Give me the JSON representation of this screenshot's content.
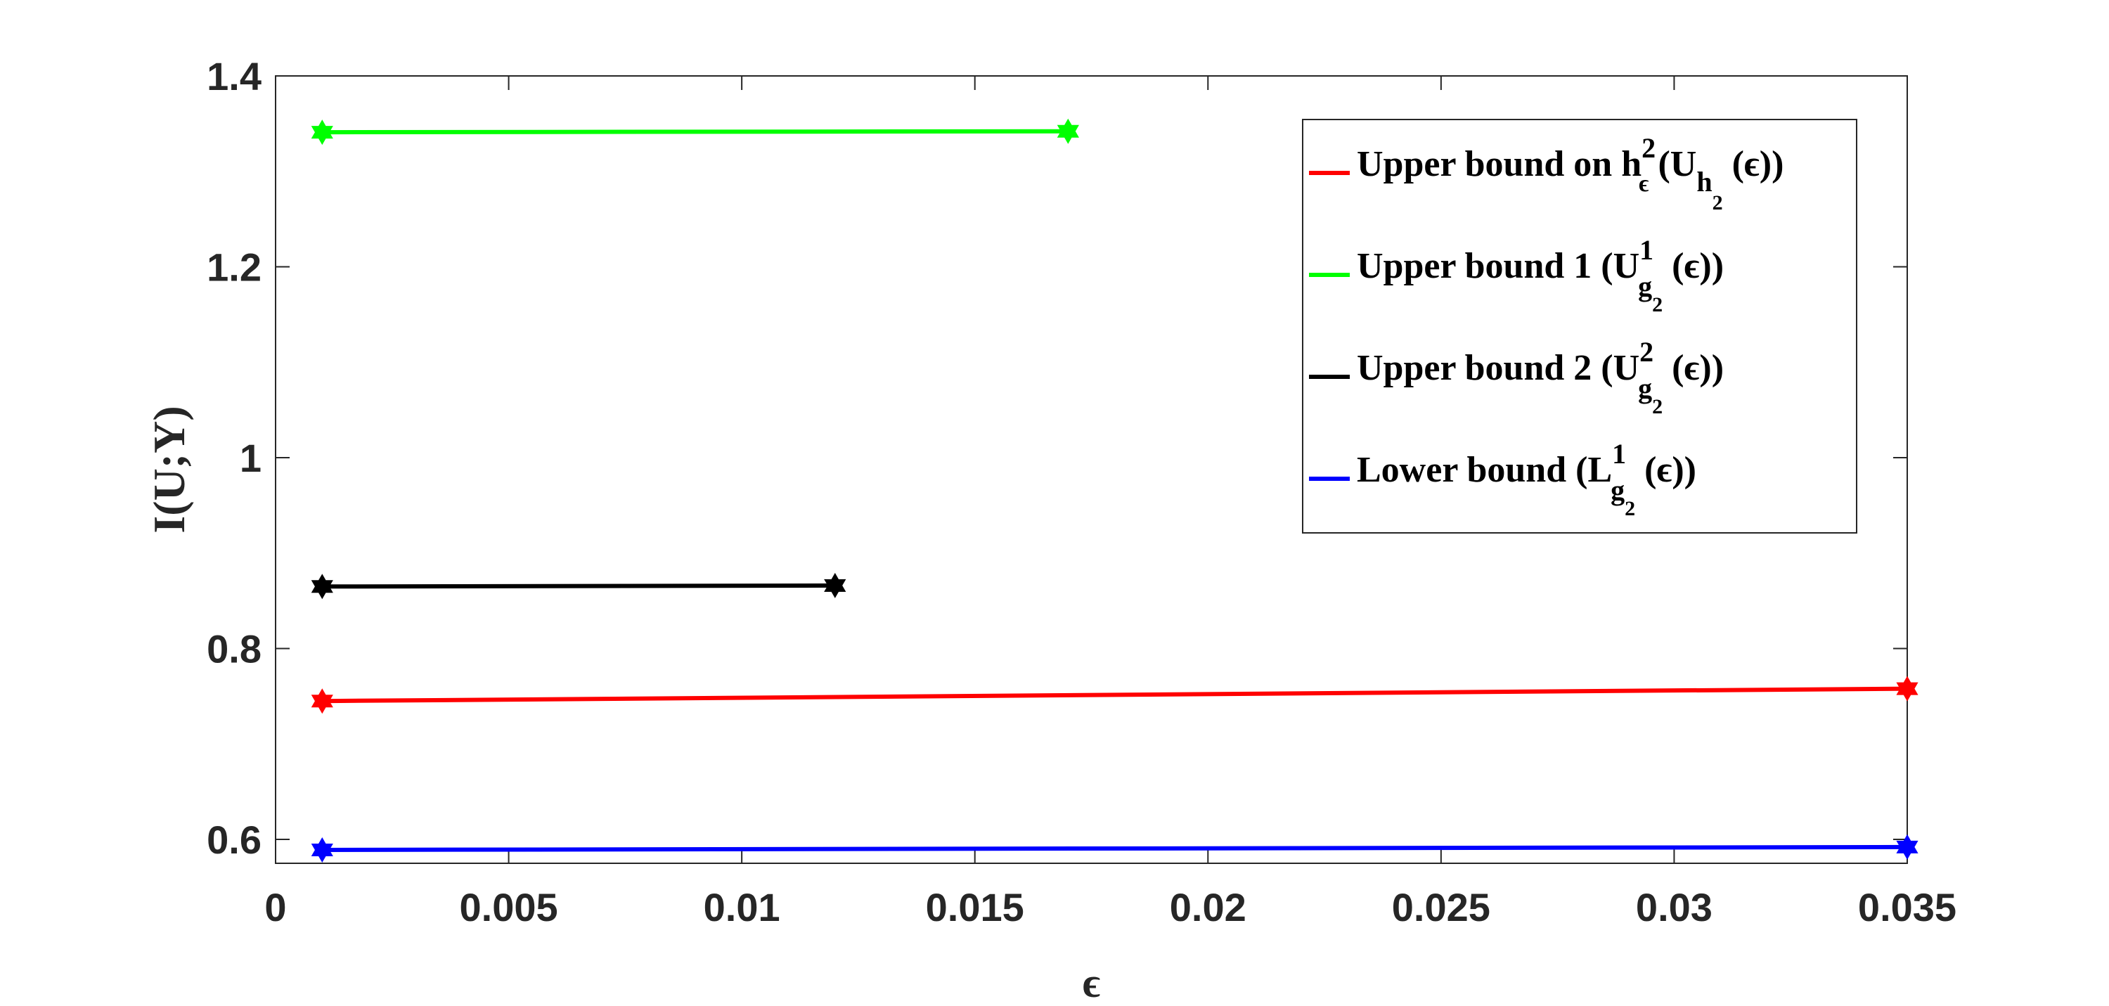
{
  "chart_data": {
    "type": "line",
    "xlabel": "ϵ",
    "ylabel": "I(U;Y)",
    "xlim": [
      0,
      0.035
    ],
    "ylim": [
      0.575,
      1.4
    ],
    "xticks": [
      0,
      0.005,
      0.01,
      0.015,
      0.02,
      0.025,
      0.03,
      0.035
    ],
    "xtick_labels": [
      "0",
      "0.005",
      "0.01",
      "0.015",
      "0.02",
      "0.025",
      "0.03",
      "0.035"
    ],
    "yticks": [
      0.6,
      0.8,
      1.0,
      1.2,
      1.4
    ],
    "ytick_labels": [
      "0.6",
      "0.8",
      "1",
      "1.2",
      "1.4"
    ],
    "grid": false,
    "legend_position": "top-right",
    "series": [
      {
        "name": "Upper bound on h",
        "legend": {
          "main": "Upper bound on h",
          "sup": "2",
          "sub": "ϵ",
          "open": " (U",
          "inner_sub": "h",
          "inner_subsub": "2",
          "close": "(ϵ))"
        },
        "color": "#ff0000",
        "marker": "hexagram",
        "x": [
          0.001,
          0.035
        ],
        "y": [
          0.745,
          0.758
        ]
      },
      {
        "name": "Upper bound 1",
        "legend": {
          "main": "Upper bound 1 (U",
          "sup": "1",
          "sub": "g",
          "subsub": "2",
          "close": "(ϵ))"
        },
        "color": "#00ff00",
        "marker": "hexagram",
        "x": [
          0.001,
          0.017
        ],
        "y": [
          1.341,
          1.342
        ]
      },
      {
        "name": "Upper bound 2",
        "legend": {
          "main": "Upper bound 2 (U",
          "sup": "2",
          "sub": "g",
          "subsub": "2",
          "close": "(ϵ))"
        },
        "color": "#000000",
        "marker": "hexagram",
        "x": [
          0.001,
          0.012
        ],
        "y": [
          0.865,
          0.866
        ]
      },
      {
        "name": "Lower bound",
        "legend": {
          "main": "Lower bound (L",
          "sup": "1",
          "sub": "g",
          "subsub": "2",
          "close": "(ϵ))"
        },
        "color": "#0000ff",
        "marker": "hexagram",
        "x": [
          0.001,
          0.035
        ],
        "y": [
          0.589,
          0.592
        ]
      }
    ]
  }
}
